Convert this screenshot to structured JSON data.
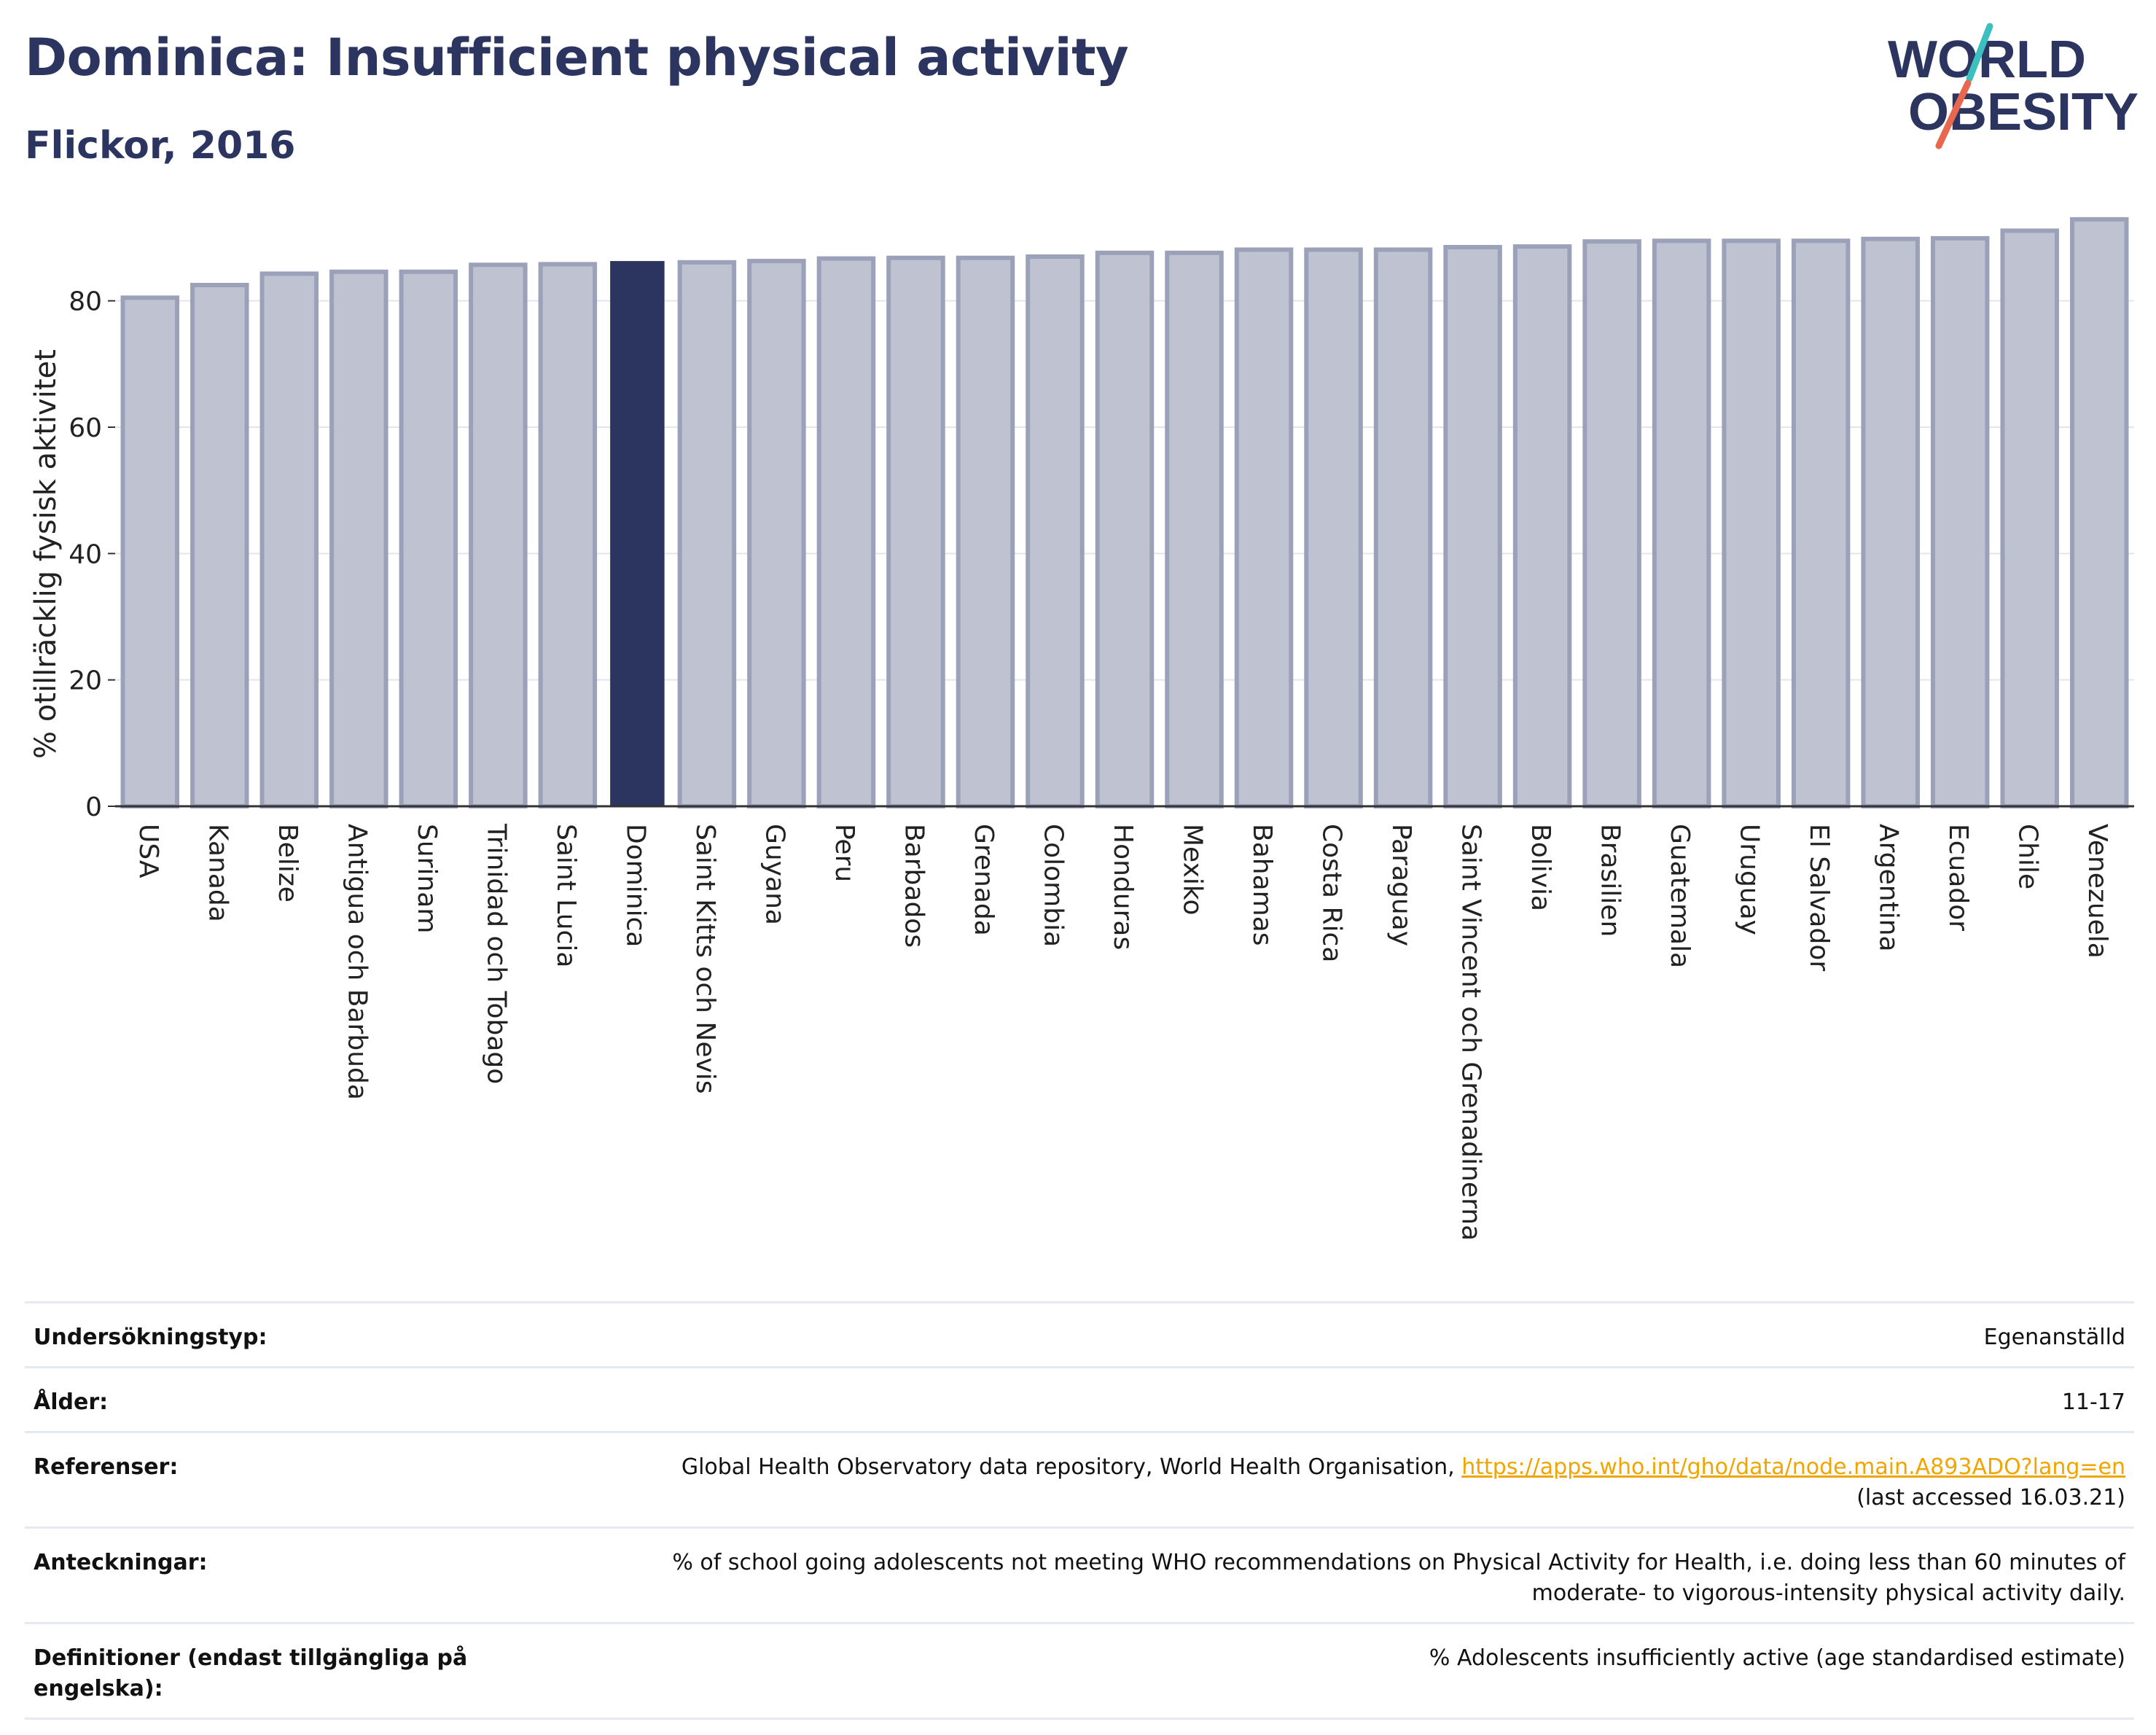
{
  "header": {
    "title": "Dominica: Insufficient physical activity",
    "subtitle": "Flickor, 2016"
  },
  "logo": {
    "line1": "WORLD",
    "line2": "OBESITY",
    "colors": {
      "text": "#2b3560",
      "slash_top": "#3bbfbf",
      "slash_bottom": "#e8674f"
    }
  },
  "colors": {
    "bar_fill": "#bfc2d0",
    "bar_stroke": "#9ba1b9",
    "highlight_fill": "#2b3560",
    "axis": "#333333",
    "grid": "#e3e5ec",
    "link": "#f0a500"
  },
  "chart_data": {
    "type": "bar",
    "title": "Dominica: Insufficient physical activity",
    "subtitle": "Flickor, 2016",
    "ylabel": "% otillräcklig fysisk aktivitet",
    "xlabel": "",
    "ylim": [
      0,
      93
    ],
    "yticks": [
      0,
      20,
      40,
      60,
      80
    ],
    "grid": true,
    "highlight": "Dominica",
    "categories": [
      "USA",
      "Kanada",
      "Belize",
      "Antigua och Barbuda",
      "Surinam",
      "Trinidad och Tobago",
      "Saint Lucia",
      "Dominica",
      "Saint Kitts och Nevis",
      "Guyana",
      "Peru",
      "Barbados",
      "Grenada",
      "Colombia",
      "Honduras",
      "Mexiko",
      "Bahamas",
      "Costa Rica",
      "Paraguay",
      "Saint Vincent och Grenadinerna",
      "Bolivia",
      "Brasilien",
      "Guatemala",
      "Uruguay",
      "El Salvador",
      "Argentina",
      "Ecuador",
      "Chile",
      "Venezuela"
    ],
    "values": [
      80.5,
      82.5,
      84.3,
      84.6,
      84.6,
      85.7,
      85.8,
      86.3,
      86.1,
      86.3,
      86.7,
      86.8,
      86.8,
      87.0,
      87.6,
      87.6,
      88.1,
      88.1,
      88.1,
      88.5,
      88.6,
      89.4,
      89.5,
      89.5,
      89.5,
      89.8,
      89.9,
      91.1,
      92.9
    ]
  },
  "info": {
    "rows": [
      {
        "key": "Undersökningstyp:",
        "value": "Egenanställd"
      },
      {
        "key": "Ålder:",
        "value": "11-17"
      },
      {
        "key": "Referenser:",
        "value": "Global Health Observatory data repository, World Health Organisation,",
        "link": "https://apps.who.int/gho/data/node.main.A893ADO?lang=en",
        "value_suffix": "(last accessed 16.03.21)"
      },
      {
        "key": "Anteckningar:",
        "value": "% of school going adolescents not meeting WHO recommendations on Physical Activity for Health, i.e. doing less than 60 minutes of moderate- to vigorous-intensity physical activity daily."
      },
      {
        "key": "Definitioner (endast tillgängliga på engelska):",
        "value": "% Adolescents insufficiently active (age standardised estimate)"
      }
    ]
  }
}
